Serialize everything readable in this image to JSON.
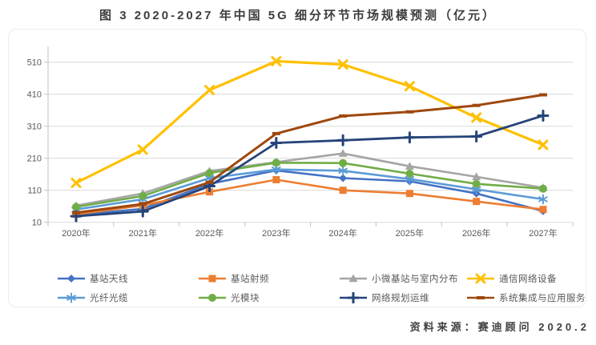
{
  "page": {
    "title": "图 3 2020-2027 年中国 5G 细分环节市场规模预测（亿元）",
    "source": "资料来源：赛迪顾问  2020.2"
  },
  "chart_data": {
    "type": "line",
    "title": "图 3 2020-2027 年中国 5G 细分环节市场规模预测（亿元）",
    "unit": "亿元",
    "categories": [
      "2020年",
      "2021年",
      "2022年",
      "2023年",
      "2024年",
      "2025年",
      "2026年",
      "2027年"
    ],
    "xlabel": "",
    "ylabel": "",
    "y_ticks": [
      10,
      110,
      210,
      310,
      410,
      510
    ],
    "ylim": [
      10,
      545
    ],
    "grid": true,
    "legend_position": "bottom",
    "series": [
      {
        "name": "基站天线",
        "color": "#4472C4",
        "marker": "diamond",
        "values": [
          33,
          52,
          130,
          172,
          148,
          138,
          100,
          45
        ]
      },
      {
        "name": "基站射频",
        "color": "#ED7D31",
        "marker": "square",
        "values": [
          35,
          63,
          105,
          143,
          110,
          100,
          75,
          50
        ]
      },
      {
        "name": "小微基站与室内分布",
        "color": "#A5A5A5",
        "marker": "triangle",
        "values": [
          62,
          100,
          170,
          198,
          225,
          185,
          152,
          118
        ]
      },
      {
        "name": "通信网络设备",
        "color": "#FFC000",
        "marker": "x",
        "values": [
          133,
          237,
          423,
          513,
          503,
          435,
          337,
          252
        ]
      },
      {
        "name": "光纤光缆",
        "color": "#5B9BD5",
        "marker": "asterisk",
        "values": [
          50,
          82,
          148,
          175,
          171,
          145,
          113,
          82
        ]
      },
      {
        "name": "光模块",
        "color": "#70AD47",
        "marker": "circle",
        "values": [
          58,
          92,
          164,
          196,
          195,
          162,
          130,
          115
        ]
      },
      {
        "name": "网络规划运维",
        "color": "#264478",
        "marker": "plus",
        "values": [
          29,
          44,
          123,
          258,
          266,
          275,
          278,
          343
        ]
      },
      {
        "name": "系统集成与应用服务",
        "color": "#9E480E",
        "marker": "dash",
        "values": [
          40,
          67,
          135,
          287,
          342,
          355,
          375,
          408
        ]
      }
    ]
  }
}
